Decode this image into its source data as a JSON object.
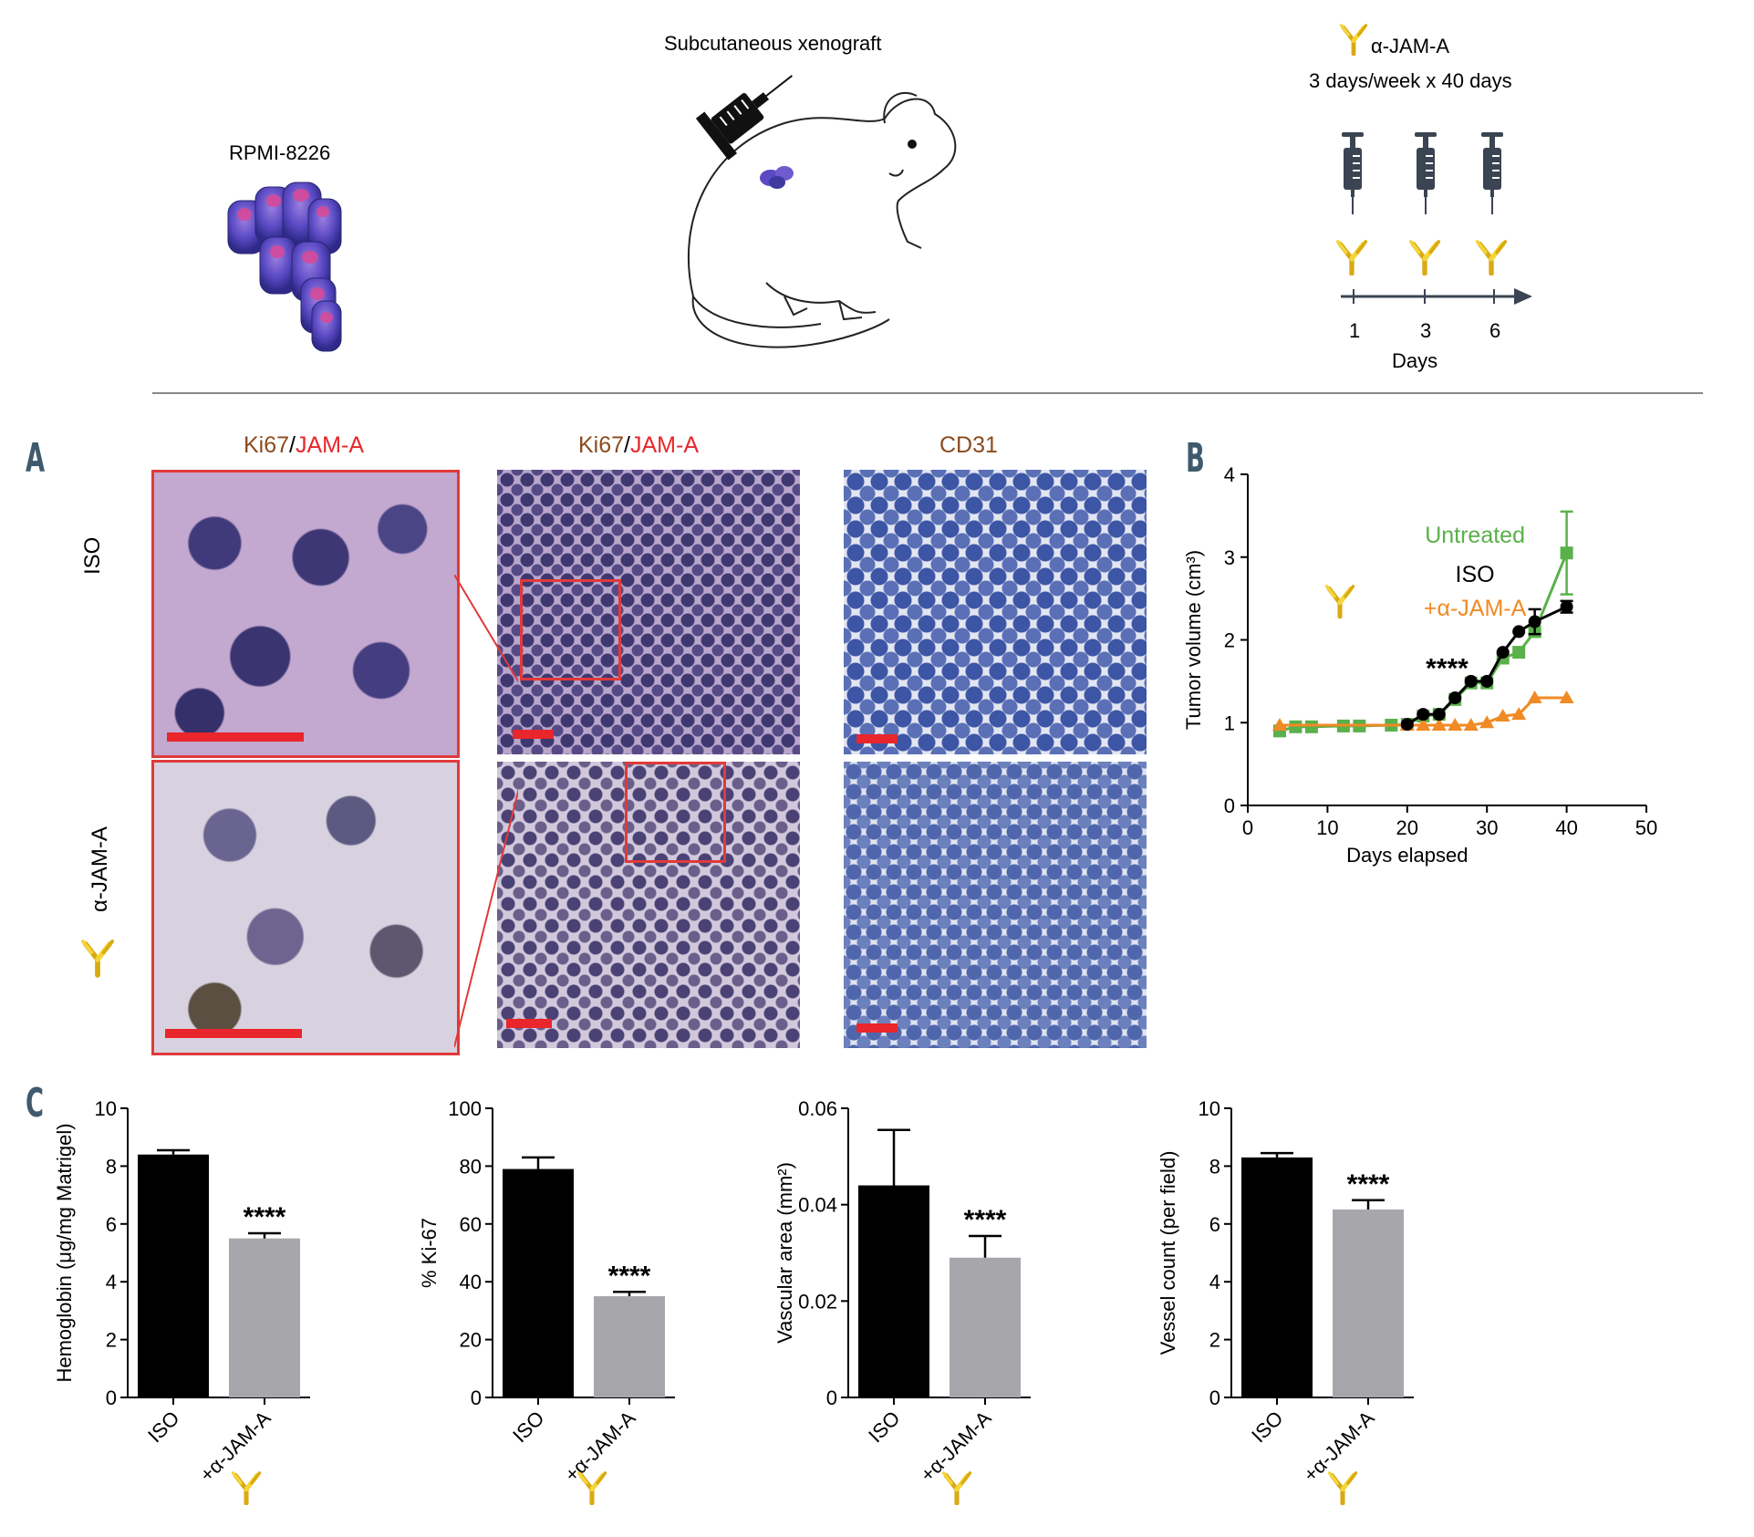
{
  "schematic": {
    "cell_line": "RPMI-8226",
    "xenograft": "Subcutaneous xenograft",
    "antibody": "α-JAM-A",
    "schedule": "3 days/week x 40 days",
    "timeline_ticks": [
      "1",
      "3",
      "6"
    ],
    "timeline_label": "Days"
  },
  "panel_letters": {
    "a": "A",
    "b": "B",
    "c": "C"
  },
  "panel_a": {
    "col1_title_a": "Ki67",
    "col1_title_sep": "/",
    "col1_title_b": "JAM-A",
    "col2_title_a": "Ki67",
    "col2_title_sep": "/",
    "col2_title_b": "JAM-A",
    "col3_title": "CD31",
    "row1_label": "ISO",
    "row2_label": "α-JAM-A"
  },
  "chart_data": [
    {
      "type": "line",
      "panel": "B",
      "xlabel": "Days elapsed",
      "ylabel": "Tumor volume (cm³)",
      "xlim": [
        0,
        50
      ],
      "ylim": [
        0,
        4
      ],
      "xticks": [
        "0",
        "10",
        "20",
        "30",
        "40",
        "50"
      ],
      "yticks": [
        "0",
        "1",
        "2",
        "3",
        "4"
      ],
      "legend": [
        "Untreated",
        "ISO",
        "+α-JAM-A"
      ],
      "annotation": "****",
      "series": [
        {
          "name": "Untreated",
          "color": "#5ab04a",
          "marker": "square",
          "x": [
            4,
            6,
            8,
            12,
            14,
            18,
            20,
            22,
            24,
            26,
            28,
            30,
            32,
            34,
            36,
            40
          ],
          "y": [
            0.9,
            0.95,
            0.95,
            0.96,
            0.96,
            0.97,
            0.98,
            1.08,
            1.1,
            1.28,
            1.48,
            1.48,
            1.78,
            1.85,
            2.1,
            3.05
          ],
          "err": [
            0,
            0,
            0,
            0,
            0,
            0,
            0,
            0,
            0,
            0,
            0,
            0,
            0,
            0,
            0,
            0.5
          ]
        },
        {
          "name": "ISO",
          "color": "#000000",
          "marker": "circle",
          "x": [
            20,
            22,
            24,
            26,
            28,
            30,
            32,
            34,
            36,
            40
          ],
          "y": [
            0.98,
            1.1,
            1.1,
            1.3,
            1.5,
            1.5,
            1.85,
            2.1,
            2.22,
            2.4
          ],
          "err": [
            0,
            0,
            0,
            0,
            0,
            0,
            0,
            0,
            0.15,
            0.07
          ]
        },
        {
          "name": "+α-JAM-A",
          "color": "#f08a24",
          "marker": "triangle",
          "x": [
            4,
            20,
            22,
            24,
            26,
            28,
            30,
            32,
            34,
            36,
            40
          ],
          "y": [
            0.97,
            0.97,
            0.97,
            0.97,
            0.97,
            0.97,
            1.0,
            1.08,
            1.1,
            1.3,
            1.3
          ],
          "err": [
            0,
            0,
            0,
            0,
            0,
            0,
            0,
            0,
            0,
            0,
            0
          ]
        }
      ]
    },
    {
      "type": "bar",
      "panel": "C1",
      "categories": [
        "ISO",
        "+α-JAM-A"
      ],
      "values": [
        8.4,
        5.5
      ],
      "err": [
        0.15,
        0.18
      ],
      "ylabel": "Hemoglobin (μg/mg Matrigel)",
      "ylim": [
        0,
        10
      ],
      "yticks": [
        "0",
        "2",
        "4",
        "6",
        "8",
        "10"
      ],
      "annotation": "****"
    },
    {
      "type": "bar",
      "panel": "C2",
      "categories": [
        "ISO",
        "+α-JAM-A"
      ],
      "values": [
        79,
        35
      ],
      "err": [
        4,
        1.5
      ],
      "ylabel": "% Ki-67",
      "ylim": [
        0,
        100
      ],
      "yticks": [
        "0",
        "20",
        "40",
        "60",
        "80",
        "100"
      ],
      "annotation": "****"
    },
    {
      "type": "bar",
      "panel": "C3",
      "categories": [
        "ISO",
        "+α-JAM-A"
      ],
      "values": [
        0.044,
        0.029
      ],
      "err": [
        0.0115,
        0.0045
      ],
      "ylabel": "Vascular area (mm²)",
      "ylim": [
        0,
        0.06
      ],
      "yticks": [
        "0",
        "0.02",
        "0.04",
        "0.06"
      ],
      "annotation": "****"
    },
    {
      "type": "bar",
      "panel": "C4",
      "categories": [
        "ISO",
        "+α-JAM-A"
      ],
      "values": [
        8.3,
        6.5
      ],
      "err": [
        0.15,
        0.32
      ],
      "ylabel": "Vessel count (per field)",
      "ylim": [
        0,
        10
      ],
      "yticks": [
        "0",
        "2",
        "4",
        "6",
        "8",
        "10"
      ],
      "annotation": "****"
    }
  ],
  "colors": {
    "black_bar": "#000000",
    "gray_bar": "#a7a7ab",
    "antibody_gold": "#e8c21a",
    "scale_bar_red": "#e8262b",
    "panel_letter": "#3f5a6e",
    "syringe": "#3b4452"
  }
}
